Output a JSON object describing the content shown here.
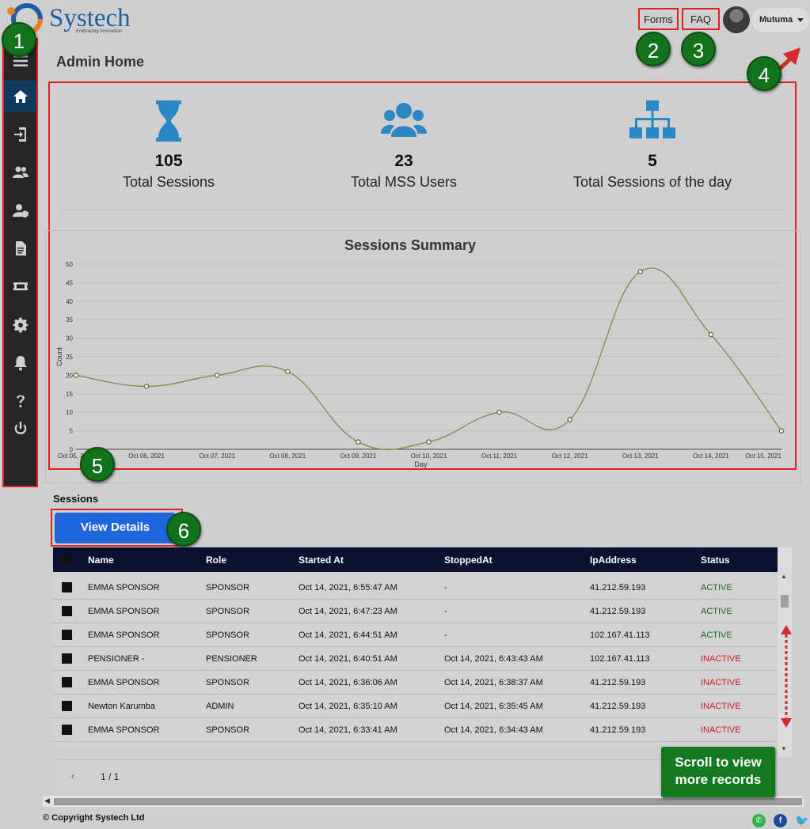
{
  "header": {
    "brand": "Systech",
    "tagline": "Embracing Innovation",
    "forms_label": "Forms",
    "faq_label": "FAQ",
    "user_name": "Mutuma"
  },
  "sidebar": {
    "items": [
      {
        "icon": "menu-icon"
      },
      {
        "icon": "home-icon",
        "active": true
      },
      {
        "icon": "login-icon"
      },
      {
        "icon": "users-icon"
      },
      {
        "icon": "user-shield-icon"
      },
      {
        "icon": "document-icon"
      },
      {
        "icon": "ticket-icon"
      },
      {
        "icon": "gear-icon"
      },
      {
        "icon": "bell-icon"
      },
      {
        "icon": "help-icon"
      },
      {
        "icon": "power-icon"
      }
    ]
  },
  "page": {
    "title": "Admin Home"
  },
  "stats": [
    {
      "icon": "hourglass-icon",
      "value": "105",
      "label": "Total Sessions"
    },
    {
      "icon": "users-group-icon",
      "value": "23",
      "label": "Total MSS Users"
    },
    {
      "icon": "sitemap-icon",
      "value": "5",
      "label": "Total Sessions of the day"
    }
  ],
  "chart_data": {
    "type": "line",
    "title": "Sessions Summary",
    "xlabel": "Day",
    "ylabel": "Count",
    "x": [
      "Oct 05, 2021",
      "Oct 06, 2021",
      "Oct 07, 2021",
      "Oct 08, 2021",
      "Oct 09, 2021",
      "Oct 10, 2021",
      "Oct 11, 2021",
      "Oct 12, 2021",
      "Oct 13, 2021",
      "Oct 14, 2021",
      "Oct 15, 2021"
    ],
    "series": [
      {
        "values": [
          20,
          17,
          20,
          21,
          2,
          2,
          10,
          8,
          48,
          31,
          5
        ]
      }
    ],
    "ylim": [
      0,
      50
    ],
    "yticks": [
      0,
      5,
      10,
      15,
      20,
      25,
      30,
      35,
      40,
      45,
      50
    ],
    "grid": true,
    "colors": {
      "line": "#7e8a4a"
    }
  },
  "sessions": {
    "label": "Sessions",
    "view_details": "View Details",
    "columns": [
      "Name",
      "Role",
      "Started At",
      "StoppedAt",
      "IpAddress",
      "Status"
    ],
    "rows": [
      [
        "EMMA SPONSOR",
        "SPONSOR",
        "Oct 14, 2021, 6:55:47 AM",
        "-",
        "41.212.59.193",
        "ACTIVE"
      ],
      [
        "EMMA SPONSOR",
        "SPONSOR",
        "Oct 14, 2021, 6:47:23 AM",
        "-",
        "41.212.59.193",
        "ACTIVE"
      ],
      [
        "EMMA SPONSOR",
        "SPONSOR",
        "Oct 14, 2021, 6:44:51 AM",
        "-",
        "102.167.41.113",
        "ACTIVE"
      ],
      [
        "PENSIONER -",
        "PENSIONER",
        "Oct 14, 2021, 6:40:51 AM",
        "Oct 14, 2021, 6:43:43 AM",
        "102.167.41.113",
        "INACTIVE"
      ],
      [
        "EMMA SPONSOR",
        "SPONSOR",
        "Oct 14, 2021, 6:36:06 AM",
        "Oct 14, 2021, 6:38:37 AM",
        "41.212.59.193",
        "INACTIVE"
      ],
      [
        "Newton Karumba",
        "ADMIN",
        "Oct 14, 2021, 6:35:10 AM",
        "Oct 14, 2021, 6:35:45 AM",
        "41.212.59.193",
        "INACTIVE"
      ],
      [
        "EMMA SPONSOR",
        "SPONSOR",
        "Oct 14, 2021, 6:33:41 AM",
        "Oct 14, 2021, 6:34:43 AM",
        "41.212.59.193",
        "INACTIVE"
      ]
    ],
    "pager": "1 / 1"
  },
  "footer": {
    "copyright": "© Copyright Systech Ltd"
  },
  "annotations": {
    "badges": [
      "1",
      "2",
      "3",
      "4",
      "5",
      "6"
    ],
    "scroll_callout": "Scroll to view more records",
    "colors": {
      "badge": "#13721c",
      "highlight": "#dd2222"
    }
  }
}
